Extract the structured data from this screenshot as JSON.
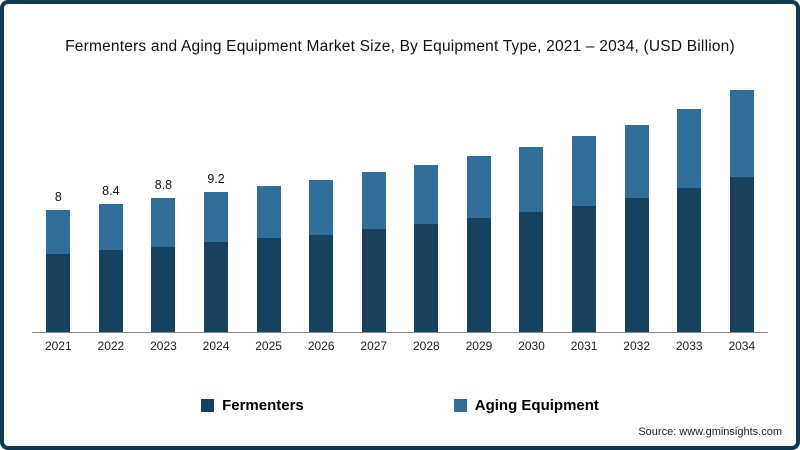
{
  "title": "Fermenters and Aging Equipment Market Size, By Equipment Type, 2021 – 2034, (USD Billion)",
  "source": "Source: www.gminsights.com",
  "colors": {
    "frame_border": "#0d3a52",
    "fermenters": "#16425f",
    "aging_equipment": "#2f6f99",
    "axis_line": "#8a8a8a"
  },
  "legend": {
    "items": [
      {
        "label": "Fermenters",
        "color": "#16425f"
      },
      {
        "label": "Aging Equipment",
        "color": "#2f6f99"
      }
    ],
    "position": "bottom"
  },
  "chart_data": {
    "type": "bar",
    "stacked": true,
    "title": "Fermenters and Aging Equipment Market Size, By Equipment Type, 2021 – 2034, (USD Billion)",
    "categories": [
      "2021",
      "2022",
      "2023",
      "2024",
      "2025",
      "2026",
      "2027",
      "2028",
      "2029",
      "2030",
      "2031",
      "2032",
      "2033",
      "2034"
    ],
    "series": [
      {
        "name": "Fermenters",
        "color": "#16425f",
        "values": [
          5.1,
          5.4,
          5.6,
          5.9,
          6.2,
          6.4,
          6.8,
          7.1,
          7.5,
          7.9,
          8.3,
          8.8,
          9.5,
          10.2
        ]
      },
      {
        "name": "Aging Equipment",
        "color": "#2f6f99",
        "values": [
          2.9,
          3.0,
          3.2,
          3.3,
          3.4,
          3.6,
          3.7,
          3.9,
          4.1,
          4.3,
          4.6,
          4.8,
          5.2,
          5.7
        ]
      }
    ],
    "totals": [
      8,
      8.4,
      8.8,
      9.2,
      9.6,
      10.0,
      10.5,
      11.0,
      11.6,
      12.2,
      12.9,
      13.6,
      14.7,
      15.9
    ],
    "data_labels": [
      "8",
      "8.4",
      "8.8",
      "9.2",
      "",
      "",
      "",
      "",
      "",
      "",
      "",
      "",
      "",
      ""
    ],
    "xlabel": "",
    "ylabel": "USD Billion",
    "ylim": [
      0,
      17
    ],
    "grid": false,
    "legend_position": "bottom"
  }
}
